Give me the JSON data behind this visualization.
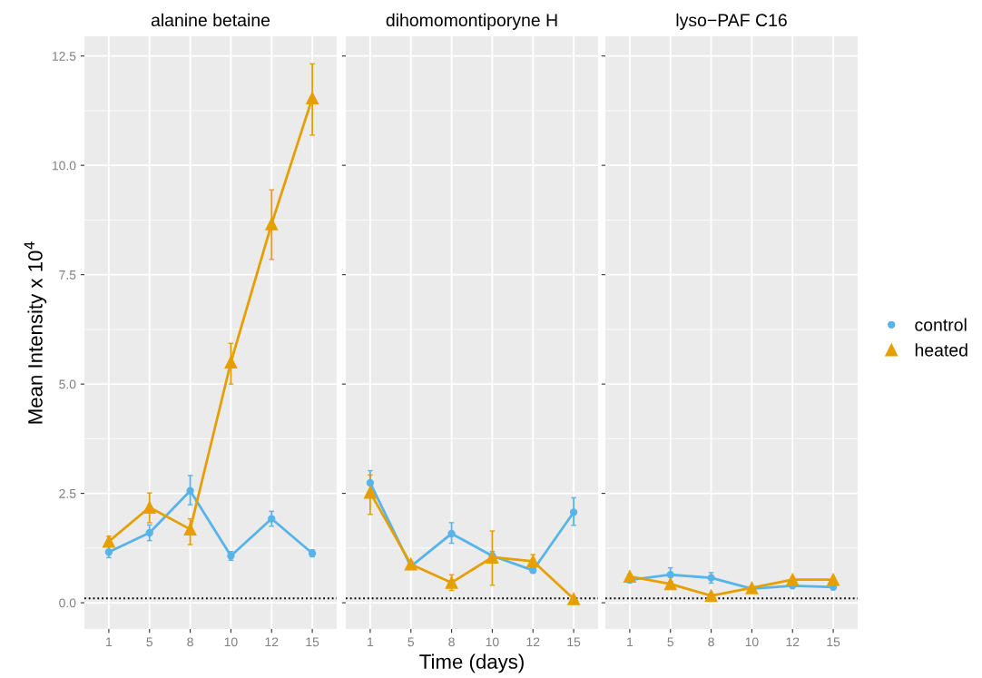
{
  "chart_data": [
    {
      "type": "line",
      "title": "alanine betaine",
      "ylabel": "Mean Intensity x 10$^{4}$",
      "categories": [
        "1",
        "5",
        "8",
        "10",
        "12",
        "15"
      ],
      "ylim": [
        -0.6,
        12.95
      ],
      "yticks": [
        {
          "value": 0,
          "label": "0.0"
        },
        {
          "value": 2.5,
          "label": "2.5"
        },
        {
          "value": 5,
          "label": "5.0"
        },
        {
          "value": 7.5,
          "label": "7.5"
        },
        {
          "value": 10,
          "label": "10.0"
        },
        {
          "value": 12.5,
          "label": "12.5"
        }
      ],
      "grid": true,
      "tick_labels": true,
      "legend": "right",
      "series": [
        {
          "name": "control",
          "color": "#56b4e9",
          "marker": "circle",
          "values": [
            1.16,
            1.6,
            2.56,
            1.07,
            1.92,
            1.13
          ],
          "errors": [
            0.13,
            0.18,
            [
              2.24,
              2.91
            ],
            0.1,
            0.17,
            0.08
          ]
        },
        {
          "name": "heated",
          "color": "#e69f00",
          "marker": "triangle",
          "values": [
            1.4,
            2.18,
            1.68,
            5.5,
            8.66,
            11.54
          ],
          "errors": [
            0.12,
            [
              1.83,
              2.51
            ],
            [
              1.33,
              1.92
            ],
            [
              5.0,
              5.93
            ],
            [
              7.85,
              9.44
            ],
            [
              10.69,
              12.32
            ]
          ]
        }
      ],
      "ref_lines": [
        {
          "axis": "y",
          "value": 0.1,
          "color": "#000000",
          "line_style": "dotted"
        }
      ]
    },
    {
      "type": "line",
      "title": "dihomomontiporyne H",
      "xlabel": "Time (days)",
      "categories": [
        "1",
        "5",
        "8",
        "10",
        "12",
        "15"
      ],
      "ylim": [
        -0.6,
        12.95
      ],
      "grid": true,
      "tick_labels": "x",
      "series": [
        {
          "color": "#56b4e9",
          "marker": "circle",
          "values": [
            2.74,
            0.83,
            1.58,
            1.07,
            0.74,
            2.07
          ],
          "errors": [
            0.28,
            null,
            [
              1.36,
              1.83
            ],
            0.1,
            0.06,
            [
              1.77,
              2.4
            ]
          ]
        },
        {
          "color": "#e69f00",
          "marker": "triangle",
          "values": [
            2.52,
            0.88,
            0.46,
            1.04,
            0.95,
            0.09
          ],
          "errors": [
            [
              2.02,
              2.92
            ],
            0.06,
            [
              0.28,
              0.64
            ],
            [
              0.4,
              1.64
            ],
            [
              0.79,
              1.1
            ],
            0.02
          ]
        }
      ],
      "ref_lines": [
        {
          "axis": "y",
          "value": 0.1,
          "color": "#000000",
          "line_style": "dotted"
        }
      ]
    },
    {
      "type": "line",
      "title": "lyso−PAF C16",
      "categories": [
        "1",
        "5",
        "8",
        "10",
        "12",
        "15"
      ],
      "ylim": [
        -0.6,
        12.95
      ],
      "grid": true,
      "tick_labels": "x",
      "series": [
        {
          "color": "#56b4e9",
          "marker": "circle",
          "values": [
            0.52,
            0.64,
            0.57,
            0.32,
            0.39,
            0.36
          ],
          "errors": [
            0.06,
            0.16,
            0.12,
            0.05,
            0.05,
            0.05
          ]
        },
        {
          "color": "#e69f00",
          "marker": "triangle",
          "values": [
            0.6,
            0.43,
            0.16,
            0.34,
            0.53,
            0.53
          ],
          "errors": [
            0.05,
            0.04,
            0.04,
            null,
            0.04,
            0.04
          ]
        }
      ],
      "ref_lines": [
        {
          "axis": "y",
          "value": 0.1,
          "color": "#000000",
          "line_style": "dotted"
        }
      ]
    }
  ]
}
